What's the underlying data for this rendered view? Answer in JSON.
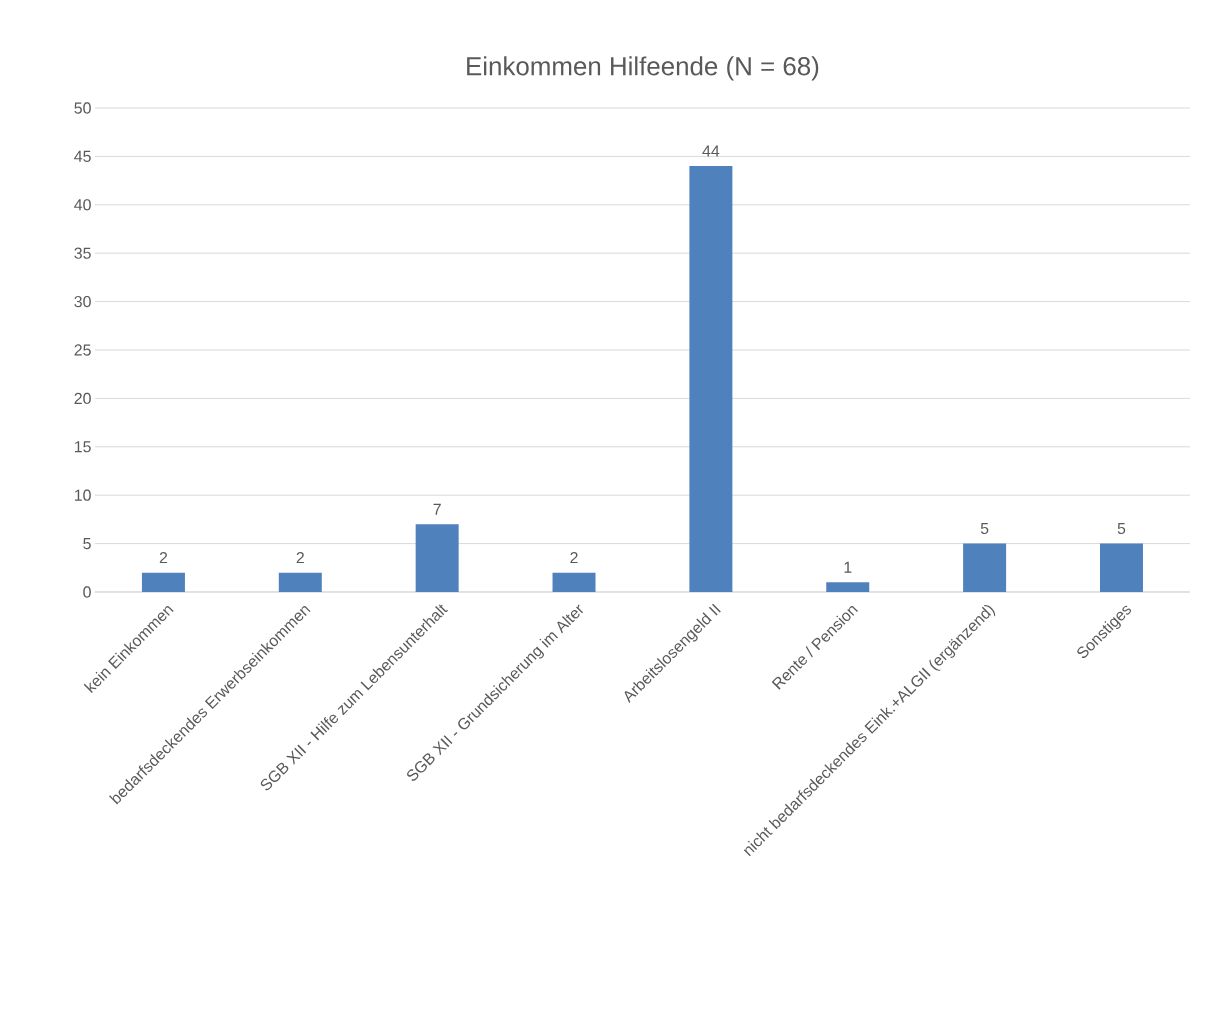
{
  "chart_data": {
    "type": "bar",
    "title": "Einkommen Hilfeende (N = 68)",
    "categories": [
      "kein Einkommen",
      "bedarfsdeckendes Erwerbseinkommen",
      "SGB XII - Hilfe zum Lebensunterhalt",
      "SGB XII - Grundsicherung im Alter",
      "Arbeitslosengeld II",
      "Rente / Pension",
      "nicht bedarfsdeckendes Eink.+ALGII (ergänzend)",
      "Sonstiges"
    ],
    "values": [
      2,
      2,
      7,
      2,
      44,
      1,
      5,
      5
    ],
    "color": "#4f81bd",
    "ylim": [
      0,
      50
    ],
    "yticks": [
      0,
      5,
      10,
      15,
      20,
      25,
      30,
      35,
      40,
      45,
      50
    ],
    "grid": "y",
    "data_labels": true
  }
}
